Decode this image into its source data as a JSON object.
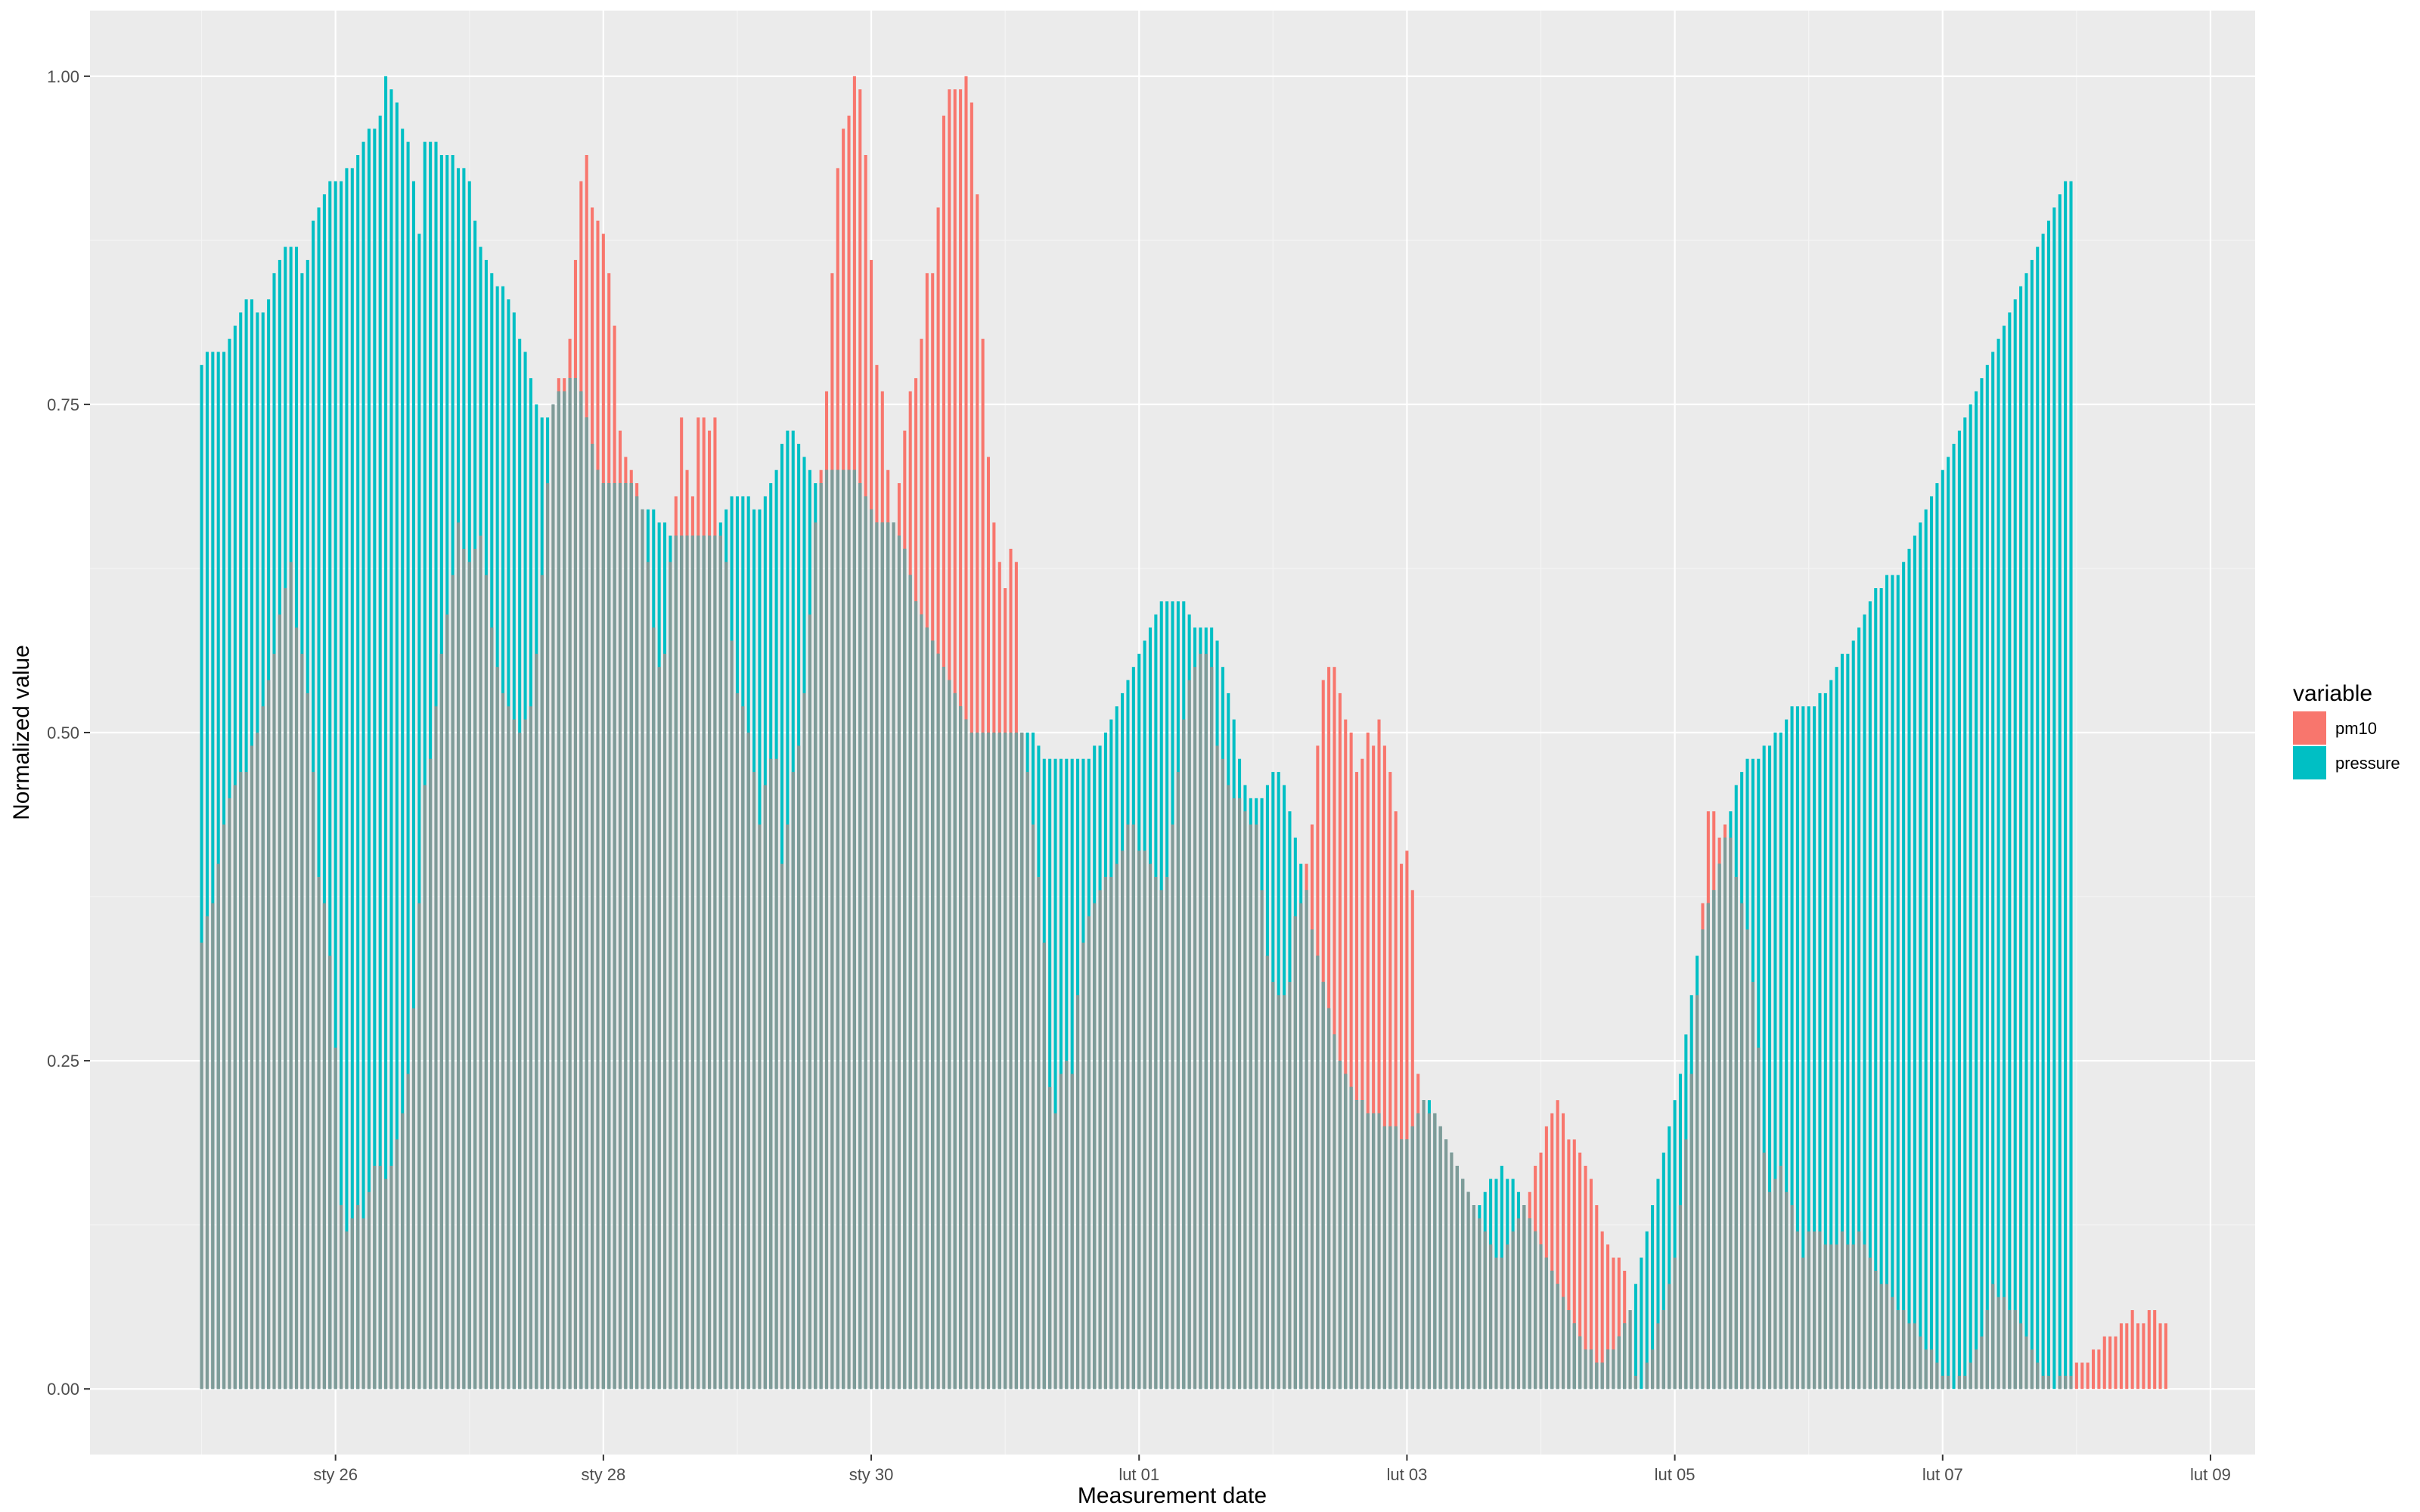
{
  "chart_data": {
    "type": "bar",
    "title": "",
    "xlabel": "Measurement date",
    "ylabel": "Normalized value",
    "x_ticks": [
      "sty 26",
      "sty 28",
      "sty 30",
      "lut 01",
      "lut 03",
      "lut 05",
      "lut 07",
      "lut 09"
    ],
    "y_ticks": [
      "0.00",
      "0.25",
      "0.50",
      "0.75",
      "1.00"
    ],
    "ylim": [
      -0.05,
      1.05
    ],
    "xlim": [
      "2017-01-24 04:00",
      "2017-02-09 08:00"
    ],
    "x_start": "2017-01-25 00:00",
    "x_step_hours": 1,
    "grid": true,
    "legend": {
      "title": "variable",
      "position": "right",
      "entries": [
        {
          "name": "pm10",
          "color": "#F8766D"
        },
        {
          "name": "pressure",
          "color": "#00BFC4"
        }
      ]
    },
    "colors": {
      "pm10": "#F8766D",
      "pressure": "#00BFC4",
      "overlap": "#7F9B98",
      "panel": "#EBEBEB",
      "grid_major": "#FFFFFF",
      "grid_minor": "#F4F4F4"
    },
    "series": [
      {
        "name": "pm10",
        "values": [
          0.34,
          0.36,
          0.37,
          0.4,
          0.43,
          0.45,
          0.46,
          0.47,
          0.47,
          0.49,
          0.5,
          0.52,
          0.54,
          0.56,
          0.59,
          0.61,
          0.63,
          0.58,
          0.56,
          0.53,
          0.47,
          0.39,
          0.37,
          0.33,
          0.26,
          0.14,
          0.12,
          0.13,
          0.14,
          0.13,
          0.15,
          0.17,
          0.17,
          0.16,
          0.17,
          0.19,
          0.21,
          0.24,
          0.29,
          0.37,
          0.46,
          0.48,
          0.52,
          0.56,
          0.59,
          0.62,
          0.66,
          0.64,
          0.63,
          0.64,
          0.65,
          0.62,
          0.58,
          0.55,
          0.53,
          0.52,
          0.51,
          0.5,
          0.51,
          0.52,
          0.56,
          0.62,
          0.69,
          0.75,
          0.77,
          0.77,
          0.8,
          0.86,
          0.92,
          0.94,
          0.9,
          0.89,
          0.88,
          0.85,
          0.81,
          0.73,
          0.71,
          0.7,
          0.69,
          0.67,
          0.63,
          0.58,
          0.55,
          0.56,
          0.63,
          0.68,
          0.74,
          0.7,
          0.68,
          0.74,
          0.74,
          0.73,
          0.74,
          0.65,
          0.63,
          0.57,
          0.53,
          0.52,
          0.5,
          0.47,
          0.43,
          0.46,
          0.48,
          0.48,
          0.4,
          0.43,
          0.47,
          0.49,
          0.53,
          0.59,
          0.66,
          0.7,
          0.76,
          0.85,
          0.93,
          0.96,
          0.97,
          1.0,
          0.99,
          0.94,
          0.86,
          0.78,
          0.76,
          0.7,
          0.66,
          0.69,
          0.73,
          0.76,
          0.77,
          0.8,
          0.85,
          0.85,
          0.9,
          0.97,
          0.99,
          0.99,
          0.99,
          1.0,
          0.98,
          0.91,
          0.8,
          0.71,
          0.66,
          0.63,
          0.61,
          0.64,
          0.63,
          0.5,
          0.47,
          0.43,
          0.39,
          0.34,
          0.23,
          0.21,
          0.24,
          0.25,
          0.24,
          0.3,
          0.34,
          0.36,
          0.37,
          0.38,
          0.39,
          0.39,
          0.4,
          0.41,
          0.43,
          0.43,
          0.41,
          0.41,
          0.4,
          0.39,
          0.38,
          0.39,
          0.43,
          0.47,
          0.51,
          0.54,
          0.55,
          0.56,
          0.56,
          0.55,
          0.49,
          0.48,
          0.46,
          0.45,
          0.45,
          0.44,
          0.43,
          0.43,
          0.38,
          0.33,
          0.31,
          0.3,
          0.3,
          0.31,
          0.36,
          0.37,
          0.4,
          0.43,
          0.49,
          0.54,
          0.55,
          0.55,
          0.53,
          0.51,
          0.5,
          0.47,
          0.48,
          0.5,
          0.49,
          0.51,
          0.49,
          0.47,
          0.44,
          0.4,
          0.41,
          0.38,
          0.24,
          0.22,
          0.21,
          0.21,
          0.2,
          0.19,
          0.18,
          0.17,
          0.16,
          0.15,
          0.14,
          0.13,
          0.12,
          0.11,
          0.1,
          0.1,
          0.11,
          0.12,
          0.13,
          0.14,
          0.15,
          0.17,
          0.18,
          0.2,
          0.21,
          0.22,
          0.21,
          0.19,
          0.19,
          0.18,
          0.17,
          0.16,
          0.14,
          0.12,
          0.11,
          0.1,
          0.1,
          0.09,
          0.06,
          0.01,
          0.0,
          0.02,
          0.03,
          0.05,
          0.06,
          0.08,
          0.1,
          0.14,
          0.19,
          0.24,
          0.3,
          0.37,
          0.44,
          0.44,
          0.42,
          0.43,
          0.42,
          0.39,
          0.37,
          0.35,
          0.31,
          0.26,
          0.18,
          0.15,
          0.16,
          0.17,
          0.15,
          0.14,
          0.12,
          0.1,
          0.12,
          0.12,
          0.12,
          0.11,
          0.11,
          0.11,
          0.12,
          0.11,
          0.11,
          0.12,
          0.11,
          0.1,
          0.09,
          0.08,
          0.08,
          0.07,
          0.06,
          0.06,
          0.05,
          0.05,
          0.04,
          0.03,
          0.03,
          0.02,
          0.01,
          0.01,
          0.0,
          0.01,
          0.01,
          0.02,
          0.03,
          0.04,
          0.06,
          0.08,
          0.07,
          0.07,
          0.06,
          0.06,
          0.05,
          0.04,
          0.03,
          0.02,
          0.01,
          0.01,
          0.0,
          0.01,
          0.01,
          0.01,
          0.02,
          0.02,
          0.02,
          0.03,
          0.03,
          0.04,
          0.04,
          0.04,
          0.05,
          0.05,
          0.06,
          0.05,
          0.05,
          0.06,
          0.06,
          0.05,
          0.05
        ]
      },
      {
        "name": "pressure",
        "values": [
          0.78,
          0.79,
          0.79,
          0.79,
          0.79,
          0.8,
          0.81,
          0.82,
          0.83,
          0.83,
          0.82,
          0.82,
          0.83,
          0.85,
          0.86,
          0.87,
          0.87,
          0.87,
          0.85,
          0.86,
          0.89,
          0.9,
          0.91,
          0.92,
          0.92,
          0.92,
          0.93,
          0.93,
          0.94,
          0.95,
          0.96,
          0.96,
          0.97,
          1.0,
          0.99,
          0.98,
          0.96,
          0.95,
          0.92,
          0.88,
          0.95,
          0.95,
          0.95,
          0.94,
          0.94,
          0.94,
          0.93,
          0.93,
          0.92,
          0.89,
          0.87,
          0.86,
          0.85,
          0.84,
          0.84,
          0.83,
          0.82,
          0.8,
          0.79,
          0.77,
          0.75,
          0.74,
          0.74,
          0.75,
          0.76,
          0.76,
          0.77,
          0.77,
          0.76,
          0.74,
          0.72,
          0.7,
          0.69,
          0.69,
          0.69,
          0.69,
          0.69,
          0.69,
          0.68,
          0.67,
          0.67,
          0.67,
          0.66,
          0.66,
          0.65,
          0.65,
          0.65,
          0.65,
          0.65,
          0.65,
          0.65,
          0.65,
          0.65,
          0.66,
          0.67,
          0.68,
          0.68,
          0.68,
          0.68,
          0.67,
          0.67,
          0.68,
          0.69,
          0.7,
          0.72,
          0.73,
          0.73,
          0.72,
          0.71,
          0.7,
          0.69,
          0.69,
          0.7,
          0.7,
          0.7,
          0.7,
          0.7,
          0.7,
          0.69,
          0.68,
          0.67,
          0.66,
          0.66,
          0.66,
          0.66,
          0.65,
          0.64,
          0.62,
          0.6,
          0.59,
          0.58,
          0.57,
          0.56,
          0.55,
          0.54,
          0.53,
          0.52,
          0.51,
          0.5,
          0.5,
          0.5,
          0.5,
          0.5,
          0.5,
          0.5,
          0.5,
          0.5,
          0.5,
          0.5,
          0.5,
          0.49,
          0.48,
          0.48,
          0.48,
          0.48,
          0.48,
          0.48,
          0.48,
          0.48,
          0.48,
          0.49,
          0.49,
          0.5,
          0.51,
          0.52,
          0.53,
          0.54,
          0.55,
          0.56,
          0.57,
          0.58,
          0.59,
          0.6,
          0.6,
          0.6,
          0.6,
          0.6,
          0.59,
          0.58,
          0.58,
          0.58,
          0.58,
          0.57,
          0.55,
          0.53,
          0.51,
          0.48,
          0.46,
          0.45,
          0.45,
          0.45,
          0.46,
          0.47,
          0.47,
          0.46,
          0.44,
          0.42,
          0.4,
          0.38,
          0.35,
          0.33,
          0.31,
          0.29,
          0.27,
          0.25,
          0.24,
          0.23,
          0.22,
          0.22,
          0.21,
          0.21,
          0.21,
          0.2,
          0.2,
          0.2,
          0.19,
          0.19,
          0.2,
          0.21,
          0.22,
          0.22,
          0.21,
          0.2,
          0.19,
          0.18,
          0.17,
          0.16,
          0.15,
          0.14,
          0.14,
          0.15,
          0.16,
          0.16,
          0.17,
          0.16,
          0.16,
          0.15,
          0.14,
          0.13,
          0.12,
          0.11,
          0.1,
          0.09,
          0.08,
          0.07,
          0.06,
          0.05,
          0.04,
          0.03,
          0.03,
          0.02,
          0.02,
          0.03,
          0.03,
          0.04,
          0.05,
          0.06,
          0.08,
          0.1,
          0.12,
          0.14,
          0.16,
          0.18,
          0.2,
          0.22,
          0.24,
          0.27,
          0.3,
          0.33,
          0.35,
          0.37,
          0.38,
          0.4,
          0.42,
          0.44,
          0.46,
          0.47,
          0.48,
          0.48,
          0.48,
          0.49,
          0.49,
          0.5,
          0.5,
          0.51,
          0.52,
          0.52,
          0.52,
          0.52,
          0.52,
          0.53,
          0.53,
          0.54,
          0.55,
          0.56,
          0.56,
          0.57,
          0.58,
          0.59,
          0.6,
          0.61,
          0.61,
          0.62,
          0.62,
          0.62,
          0.63,
          0.64,
          0.65,
          0.66,
          0.67,
          0.68,
          0.69,
          0.7,
          0.71,
          0.72,
          0.73,
          0.74,
          0.75,
          0.76,
          0.77,
          0.78,
          0.79,
          0.8,
          0.81,
          0.82,
          0.83,
          0.84,
          0.85,
          0.86,
          0.87,
          0.88,
          0.89,
          0.9,
          0.91,
          0.92,
          0.92
        ]
      }
    ]
  }
}
